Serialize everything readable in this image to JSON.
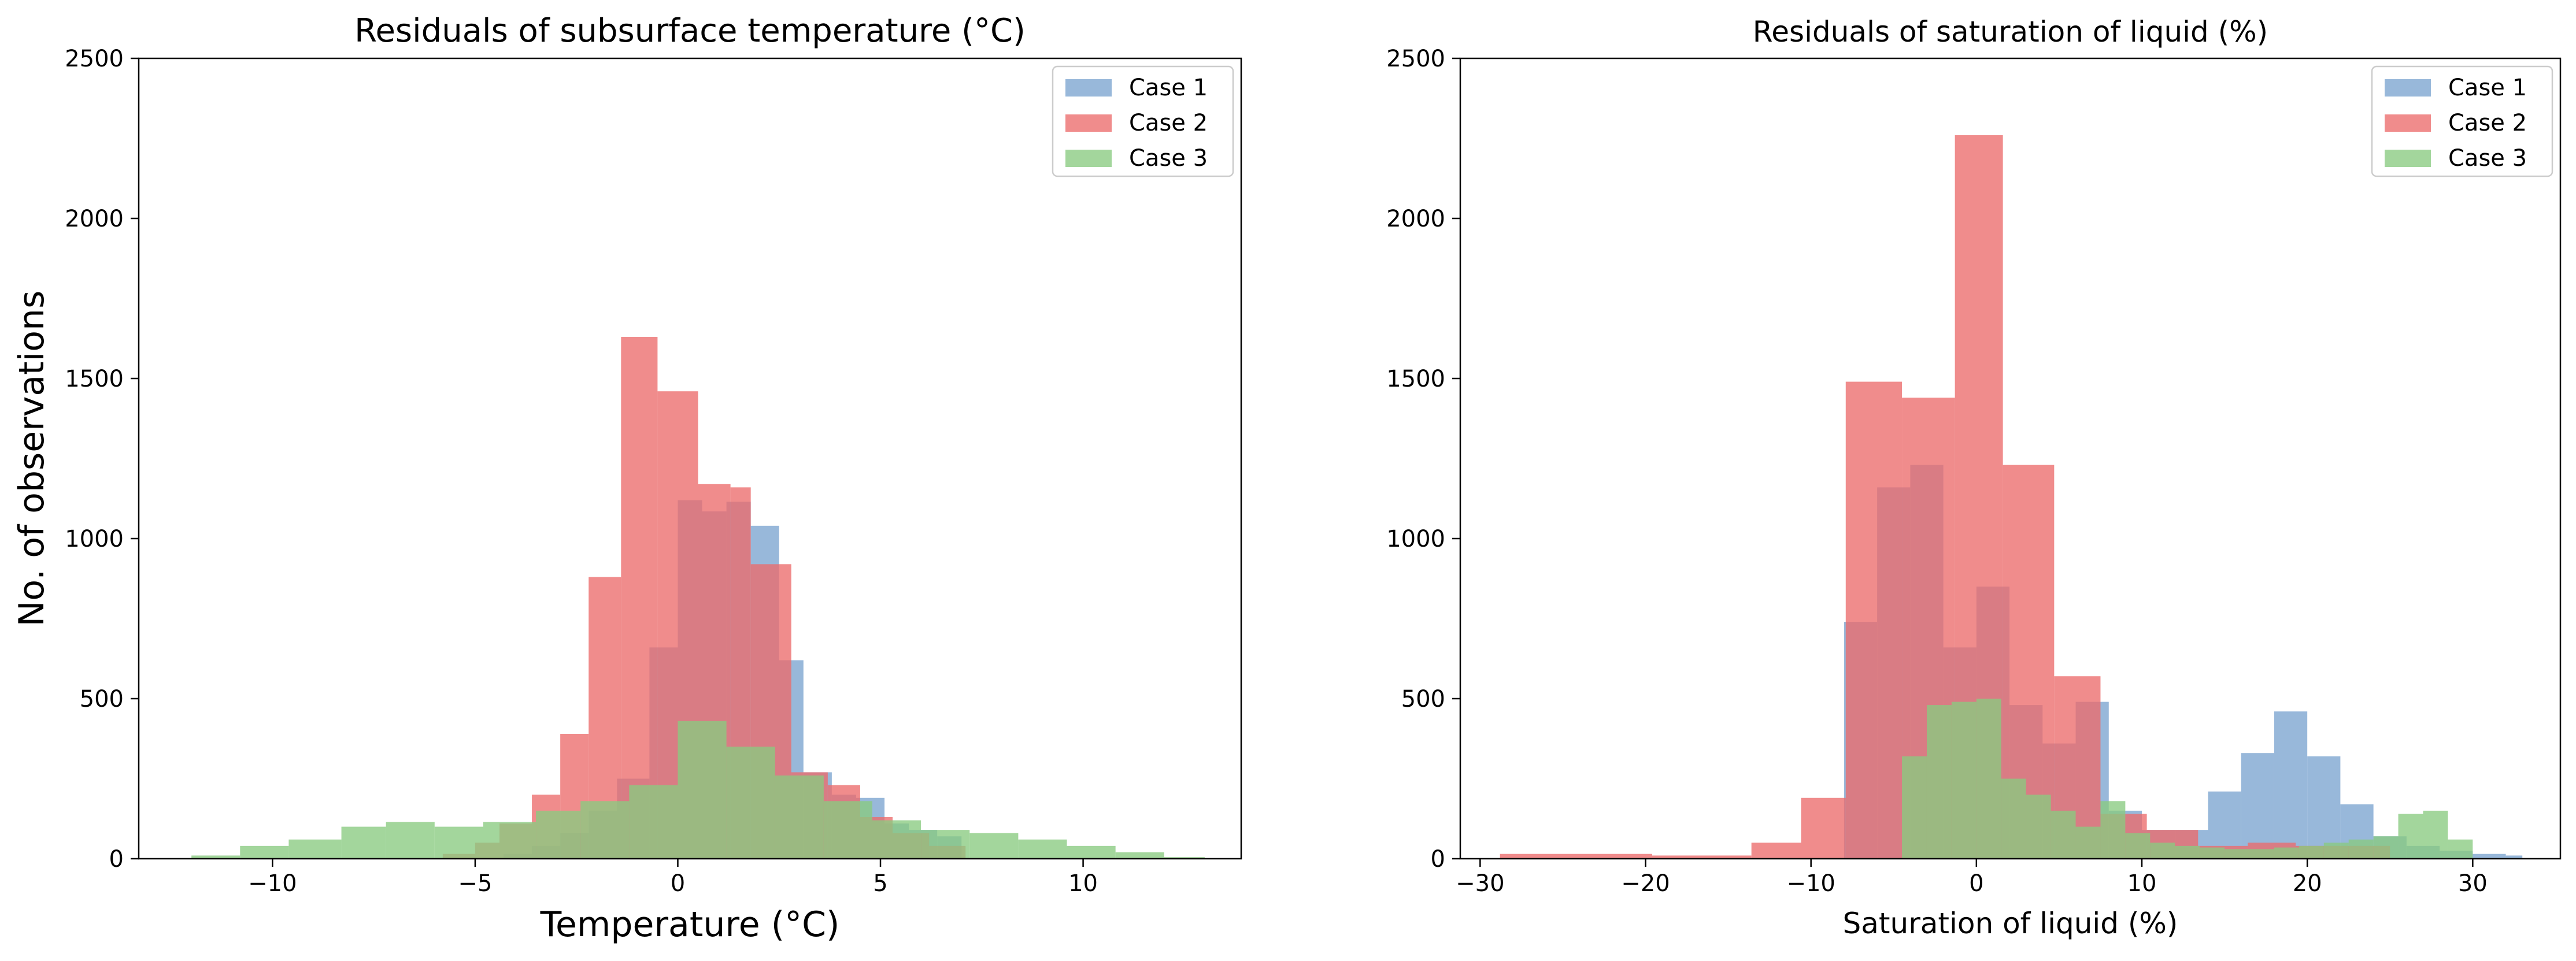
{
  "chart_data": [
    {
      "type": "histogram",
      "title": "Residuals of subsurface temperature (°C)",
      "xlabel": "Temperature (°C)",
      "ylabel": "No. of observations",
      "xlim": [
        -13.3,
        13.9
      ],
      "ylim": [
        0,
        2500
      ],
      "xticks": [
        -10,
        -5,
        0,
        5,
        10
      ],
      "yticks": [
        0,
        500,
        1000,
        1500,
        2000,
        2500
      ],
      "xtick_labels": [
        "−10",
        "−5",
        "0",
        "5",
        "10"
      ],
      "ytick_labels": [
        "0",
        "500",
        "1000",
        "1500",
        "2000",
        "2500"
      ],
      "legend_position": "top-right",
      "series": [
        {
          "name": "Case 1",
          "color": "#7ba4cf",
          "bins": [
            [
              -5,
              -4.3,
              2
            ],
            [
              -4.3,
              -3.6,
              15
            ],
            [
              -3.6,
              -2.9,
              40
            ],
            [
              -2.9,
              -2.2,
              80
            ],
            [
              -2.2,
              -1.5,
              150
            ],
            [
              -1.5,
              -0.7,
              250
            ],
            [
              -0.7,
              0,
              660
            ],
            [
              0,
              0.6,
              1120
            ],
            [
              0.6,
              1.2,
              1085
            ],
            [
              1.2,
              1.8,
              1115
            ],
            [
              1.8,
              2.5,
              1040
            ],
            [
              2.5,
              3.1,
              620
            ],
            [
              3.1,
              3.8,
              270
            ],
            [
              3.8,
              4.4,
              200
            ],
            [
              4.4,
              5.1,
              190
            ],
            [
              5.1,
              5.7,
              110
            ],
            [
              5.7,
              6.4,
              90
            ],
            [
              6.4,
              7,
              70
            ]
          ]
        },
        {
          "name": "Case 2",
          "color": "#ec6b6b",
          "bins": [
            [
              -5.8,
              -5,
              15
            ],
            [
              -5,
              -4.4,
              50
            ],
            [
              -4.4,
              -3.6,
              110
            ],
            [
              -3.6,
              -2.9,
              200
            ],
            [
              -2.9,
              -2.2,
              390
            ],
            [
              -2.2,
              -1.4,
              880
            ],
            [
              -1.4,
              -0.5,
              1630
            ],
            [
              -0.5,
              0.5,
              1460
            ],
            [
              0.5,
              1.3,
              1170
            ],
            [
              1.3,
              1.8,
              1160
            ],
            [
              1.8,
              2.8,
              920
            ],
            [
              2.8,
              3.7,
              270
            ],
            [
              3.7,
              4.5,
              230
            ],
            [
              4.5,
              5.3,
              130
            ],
            [
              5.3,
              6.2,
              80
            ],
            [
              6.2,
              7.1,
              40
            ]
          ]
        },
        {
          "name": "Case 3",
          "color": "#89cb80",
          "bins": [
            [
              -12,
              -10.8,
              10
            ],
            [
              -10.8,
              -9.6,
              40
            ],
            [
              -9.6,
              -8.3,
              60
            ],
            [
              -8.3,
              -7.2,
              100
            ],
            [
              -7.2,
              -6,
              115
            ],
            [
              -6,
              -4.8,
              100
            ],
            [
              -4.8,
              -3.5,
              115
            ],
            [
              -3.5,
              -2.4,
              150
            ],
            [
              -2.4,
              -1.2,
              180
            ],
            [
              -1.2,
              0,
              230
            ],
            [
              0,
              1.2,
              430
            ],
            [
              1.2,
              2.4,
              350
            ],
            [
              2.4,
              3.6,
              260
            ],
            [
              3.6,
              4.8,
              180
            ],
            [
              4.8,
              6,
              120
            ],
            [
              6,
              7.2,
              90
            ],
            [
              7.2,
              8.4,
              80
            ],
            [
              8.4,
              9.6,
              60
            ],
            [
              9.6,
              10.8,
              40
            ],
            [
              10.8,
              12,
              20
            ],
            [
              12,
              13,
              5
            ]
          ]
        }
      ]
    },
    {
      "type": "histogram",
      "title": "Residuals of saturation of liquid (%)",
      "xlabel": "Saturation of liquid (%)",
      "ylabel": "",
      "xlim": [
        -31.2,
        35.3
      ],
      "ylim": [
        0,
        2500
      ],
      "xticks": [
        -30,
        -20,
        -10,
        0,
        10,
        20,
        30
      ],
      "yticks": [
        0,
        500,
        1000,
        1500,
        2000,
        2500
      ],
      "xtick_labels": [
        "−30",
        "−20",
        "−10",
        "0",
        "10",
        "20",
        "30"
      ],
      "ytick_labels": [
        "0",
        "500",
        "1000",
        "1500",
        "2000",
        "2500"
      ],
      "legend_position": "top-right",
      "series": [
        {
          "name": "Case 1",
          "color": "#7ba4cf",
          "bins": [
            [
              -8,
              -6,
              740
            ],
            [
              -6,
              -4,
              1160
            ],
            [
              -4,
              -2,
              1230
            ],
            [
              -2,
              0,
              660
            ],
            [
              0,
              2,
              850
            ],
            [
              2,
              4,
              480
            ],
            [
              4,
              6,
              360
            ],
            [
              6,
              8,
              490
            ],
            [
              8,
              10,
              150
            ],
            [
              10,
              12,
              90
            ],
            [
              12,
              14,
              90
            ],
            [
              14,
              16,
              210
            ],
            [
              16,
              18,
              330
            ],
            [
              18,
              20,
              460
            ],
            [
              20,
              22,
              320
            ],
            [
              22,
              24,
              170
            ],
            [
              24,
              26,
              70
            ],
            [
              26,
              28,
              40
            ],
            [
              28,
              30,
              25
            ],
            [
              30,
              32,
              15
            ],
            [
              32,
              33,
              10
            ]
          ]
        },
        {
          "name": "Case 2",
          "color": "#ec6b6b",
          "bins": [
            [
              -28.8,
              -19.6,
              15
            ],
            [
              -19.6,
              -13.6,
              10
            ],
            [
              -13.6,
              -10.6,
              50
            ],
            [
              -10.6,
              -7.9,
              190
            ],
            [
              -7.9,
              -4.5,
              1490
            ],
            [
              -4.5,
              -1.3,
              1440
            ],
            [
              -1.3,
              1.6,
              2260
            ],
            [
              1.6,
              4.7,
              1230
            ],
            [
              4.7,
              7.5,
              570
            ],
            [
              7.5,
              10.3,
              140
            ],
            [
              10.3,
              13.4,
              90
            ],
            [
              13.4,
              16.4,
              40
            ],
            [
              16.4,
              19.3,
              50
            ],
            [
              19.3,
              22.3,
              40
            ],
            [
              22.3,
              25,
              40
            ]
          ]
        },
        {
          "name": "Case 3",
          "color": "#89cb80",
          "bins": [
            [
              -4.5,
              -3,
              320
            ],
            [
              -3,
              -1.5,
              480
            ],
            [
              -1.5,
              0,
              490
            ],
            [
              0,
              1.5,
              500
            ],
            [
              1.5,
              3,
              250
            ],
            [
              3,
              4.5,
              200
            ],
            [
              4.5,
              6,
              150
            ],
            [
              6,
              7.5,
              100
            ],
            [
              7.5,
              9,
              180
            ],
            [
              9,
              10.5,
              80
            ],
            [
              10.5,
              12,
              50
            ],
            [
              12,
              13.5,
              40
            ],
            [
              13.5,
              15,
              35
            ],
            [
              15,
              16.5,
              30
            ],
            [
              16.5,
              18,
              30
            ],
            [
              18,
              19.5,
              35
            ],
            [
              19.5,
              21,
              40
            ],
            [
              21,
              22.5,
              50
            ],
            [
              22.5,
              24,
              60
            ],
            [
              24,
              25.5,
              70
            ],
            [
              25.5,
              27,
              140
            ],
            [
              27,
              28.5,
              150
            ],
            [
              28.5,
              30,
              60
            ]
          ]
        }
      ]
    }
  ]
}
